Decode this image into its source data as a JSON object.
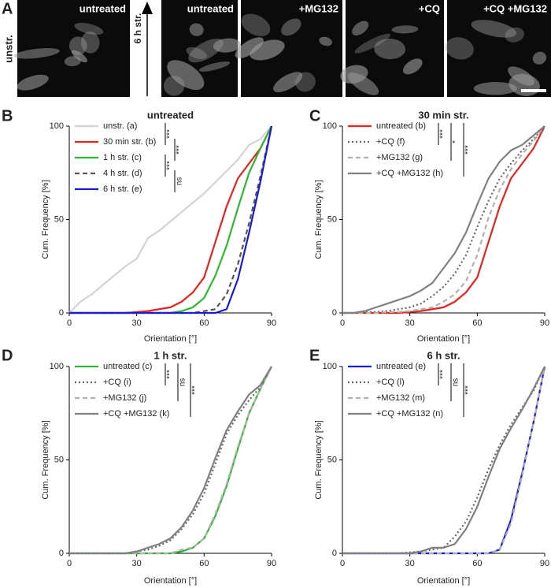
{
  "panel_a": {
    "panel": "A",
    "side_label": "unstr.",
    "arrow_label": "6 h str.",
    "images": [
      {
        "label": "untreated"
      },
      {
        "label": "untreated"
      },
      {
        "label": "+MG132"
      },
      {
        "label": "+CQ"
      },
      {
        "label": "+CQ +MG132"
      }
    ]
  },
  "chart_data": [
    {
      "type": "line",
      "panel": "B",
      "title": "untreated",
      "x_label": "Orientation [°]",
      "y_label": "Cum. Frequency [%]",
      "x": [
        0,
        5,
        10,
        15,
        20,
        25,
        30,
        35,
        40,
        45,
        50,
        55,
        60,
        65,
        70,
        75,
        80,
        85,
        90
      ],
      "xlim": [
        0,
        90
      ],
      "ylim": [
        0,
        100
      ],
      "xticks": [
        0,
        30,
        60,
        90
      ],
      "yticks": [
        0,
        50,
        100
      ],
      "series": [
        {
          "name": "unstr. (a)",
          "color": "#d3d3d3",
          "style": "solid",
          "values": [
            0,
            6,
            10,
            15,
            20,
            25,
            29,
            40,
            44,
            49,
            54,
            59,
            64,
            70,
            76,
            82,
            90,
            93,
            100
          ]
        },
        {
          "name": "30 min str. (b)",
          "color": "#e8221c",
          "style": "solid",
          "values": [
            0,
            0,
            0,
            0,
            0,
            0,
            0.5,
            1,
            2,
            3,
            6,
            11,
            19,
            38,
            57,
            72,
            80,
            88,
            100
          ]
        },
        {
          "name": "1 h str. (c)",
          "color": "#2db82d",
          "style": "solid",
          "values": [
            0,
            0,
            0,
            0,
            0,
            0,
            0,
            0,
            0,
            0,
            1,
            3,
            8,
            20,
            36,
            56,
            75,
            88,
            100
          ]
        },
        {
          "name": "4 h str. (d)",
          "color": "#555555",
          "style": "dashed",
          "values": [
            0,
            0,
            0,
            0,
            0,
            0,
            0,
            0,
            0,
            0,
            0,
            0,
            1,
            2,
            10,
            26,
            48,
            73,
            100
          ]
        },
        {
          "name": "6 h str. (e)",
          "color": "#1a1adb",
          "style": "solid",
          "values": [
            0,
            0,
            0,
            0,
            0,
            0,
            0,
            0,
            0,
            0,
            0,
            0,
            0,
            0,
            2,
            18,
            43,
            70,
            100
          ]
        }
      ],
      "annotations": [
        {
          "text": "***",
          "from": 0,
          "to": 1
        },
        {
          "text": "***",
          "from": 1,
          "to": 2
        },
        {
          "text": "***",
          "from": 2,
          "to": 3
        },
        {
          "text": "ns",
          "from": 3,
          "to": 4
        }
      ]
    },
    {
      "type": "line",
      "panel": "C",
      "title": "30 min str.",
      "x_label": "Orientation [°]",
      "y_label": "Cum. Frequency [%]",
      "x": [
        0,
        5,
        10,
        15,
        20,
        25,
        30,
        35,
        40,
        45,
        50,
        55,
        60,
        65,
        70,
        75,
        80,
        85,
        90
      ],
      "xlim": [
        0,
        90
      ],
      "ylim": [
        0,
        100
      ],
      "xticks": [
        0,
        30,
        60,
        90
      ],
      "yticks": [
        0,
        50,
        100
      ],
      "series": [
        {
          "name": "untreated (b)",
          "color": "#e8221c",
          "style": "solid",
          "values": [
            0,
            0,
            0,
            0,
            0,
            0,
            0.5,
            1,
            2,
            3,
            6,
            11,
            19,
            38,
            57,
            72,
            80,
            88,
            100
          ]
        },
        {
          "name": "+CQ (f)",
          "color": "#666666",
          "style": "dotted",
          "values": [
            0,
            0,
            0.5,
            0.5,
            1,
            2,
            3,
            5,
            9,
            14,
            21,
            31,
            46,
            60,
            72,
            80,
            87,
            93,
            100
          ]
        },
        {
          "name": "+MG132 (g)",
          "color": "#b0b0b0",
          "style": "dashed",
          "values": [
            0,
            0,
            0,
            0,
            0.5,
            0.5,
            1,
            2,
            3,
            6,
            10,
            17,
            31,
            51,
            66,
            77,
            85,
            92,
            100
          ]
        },
        {
          "name": "+CQ +MG132 (h)",
          "color": "#808080",
          "style": "solid",
          "values": [
            0,
            0,
            1,
            3,
            5,
            7,
            9,
            12,
            16,
            24,
            32,
            43,
            58,
            72,
            81,
            87,
            90,
            95,
            100
          ]
        }
      ],
      "annotations": [
        {
          "text": "***",
          "from": 0,
          "to": 1
        },
        {
          "text": "*",
          "from": 0,
          "to": 2
        },
        {
          "text": "***",
          "from": 0,
          "to": 3
        }
      ]
    },
    {
      "type": "line",
      "panel": "D",
      "title": "1 h str.",
      "x_label": "Orientation [°]",
      "y_label": "Cum. Frequency [%]",
      "x": [
        0,
        5,
        10,
        15,
        20,
        25,
        30,
        35,
        40,
        45,
        50,
        55,
        60,
        65,
        70,
        75,
        80,
        85,
        90
      ],
      "xlim": [
        0,
        90
      ],
      "ylim": [
        0,
        100
      ],
      "xticks": [
        0,
        30,
        60,
        90
      ],
      "yticks": [
        0,
        50,
        100
      ],
      "series": [
        {
          "name": "untreated (c)",
          "color": "#2db82d",
          "style": "solid",
          "values": [
            0,
            0,
            0,
            0,
            0,
            0,
            0,
            0,
            0,
            0,
            1,
            3,
            8,
            20,
            36,
            56,
            75,
            88,
            100
          ]
        },
        {
          "name": "+CQ (i)",
          "color": "#666666",
          "style": "dotted",
          "values": [
            0,
            0,
            0,
            0,
            0,
            0,
            1,
            2,
            4,
            7,
            13,
            21,
            32,
            48,
            64,
            74,
            82,
            89,
            100
          ]
        },
        {
          "name": "+MG132 (j)",
          "color": "#b0b0b0",
          "style": "dashed",
          "values": [
            0,
            0,
            0,
            0,
            0,
            0,
            0,
            0,
            0,
            0,
            2,
            3,
            8,
            21,
            37,
            57,
            75,
            88,
            100
          ]
        },
        {
          "name": "+CQ +MG132 (k)",
          "color": "#808080",
          "style": "solid",
          "values": [
            0,
            0,
            0,
            0,
            0,
            0,
            1,
            3,
            5,
            8,
            14,
            23,
            35,
            51,
            66,
            76,
            85,
            90,
            100
          ]
        }
      ],
      "annotations": [
        {
          "text": "***",
          "from": 0,
          "to": 1
        },
        {
          "text": "ns",
          "from": 0,
          "to": 2
        },
        {
          "text": "***",
          "from": 0,
          "to": 3
        }
      ]
    },
    {
      "type": "line",
      "panel": "E",
      "title": "6 h str.",
      "x_label": "Orientation [°]",
      "y_label": "Cum. Frequency [%]",
      "x": [
        0,
        5,
        10,
        15,
        20,
        25,
        30,
        35,
        40,
        45,
        50,
        55,
        60,
        65,
        70,
        75,
        80,
        85,
        90
      ],
      "xlim": [
        0,
        90
      ],
      "ylim": [
        0,
        100
      ],
      "xticks": [
        0,
        30,
        60,
        90
      ],
      "yticks": [
        0,
        50,
        100
      ],
      "series": [
        {
          "name": "untreated (e)",
          "color": "#1a1adb",
          "style": "solid",
          "values": [
            0,
            0,
            0,
            0,
            0,
            0,
            0,
            0,
            0,
            0,
            0,
            0,
            0,
            0,
            2,
            18,
            43,
            70,
            100
          ]
        },
        {
          "name": "+CQ (l)",
          "color": "#666666",
          "style": "dotted",
          "values": [
            0,
            0,
            0,
            0,
            0,
            0,
            0.5,
            1,
            2,
            3,
            9,
            17,
            30,
            45,
            58,
            69,
            78,
            87,
            100
          ]
        },
        {
          "name": "+MG132 (m)",
          "color": "#b0b0b0",
          "style": "dashed",
          "values": [
            0,
            0,
            0,
            0,
            0,
            0,
            0,
            0,
            0,
            0,
            0,
            0,
            0,
            0,
            2,
            16,
            42,
            70,
            100
          ]
        },
        {
          "name": "+CQ +MG132 (n)",
          "color": "#808080",
          "style": "solid",
          "values": [
            0,
            0,
            0,
            0,
            0,
            0,
            0,
            1,
            3,
            3,
            5,
            13,
            25,
            41,
            56,
            67,
            77,
            88,
            100
          ]
        }
      ],
      "annotations": [
        {
          "text": "***",
          "from": 0,
          "to": 1
        },
        {
          "text": "ns",
          "from": 0,
          "to": 2
        },
        {
          "text": "***",
          "from": 0,
          "to": 3
        }
      ]
    }
  ]
}
